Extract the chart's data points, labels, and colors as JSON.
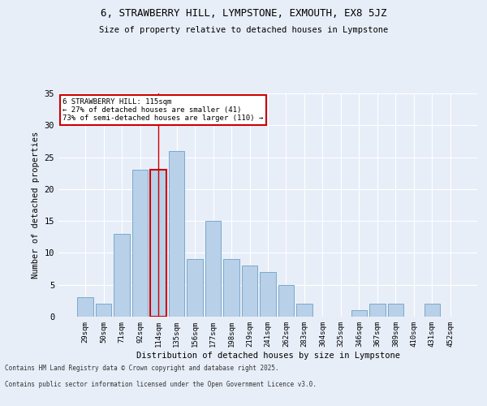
{
  "title_line1": "6, STRAWBERRY HILL, LYMPSTONE, EXMOUTH, EX8 5JZ",
  "title_line2": "Size of property relative to detached houses in Lympstone",
  "xlabel": "Distribution of detached houses by size in Lympstone",
  "ylabel": "Number of detached properties",
  "categories": [
    "29sqm",
    "50sqm",
    "71sqm",
    "92sqm",
    "114sqm",
    "135sqm",
    "156sqm",
    "177sqm",
    "198sqm",
    "219sqm",
    "241sqm",
    "262sqm",
    "283sqm",
    "304sqm",
    "325sqm",
    "346sqm",
    "367sqm",
    "389sqm",
    "410sqm",
    "431sqm",
    "452sqm"
  ],
  "values": [
    3,
    2,
    13,
    23,
    23,
    26,
    9,
    15,
    9,
    8,
    7,
    5,
    2,
    0,
    0,
    1,
    2,
    2,
    0,
    2,
    0
  ],
  "bar_color": "#b8d0e8",
  "bar_edge_color": "#7aaacb",
  "highlight_bar_index": 4,
  "highlight_bar_edge_color": "#cc0000",
  "annotation_text": "6 STRAWBERRY HILL: 115sqm\n← 27% of detached houses are smaller (41)\n73% of semi-detached houses are larger (110) →",
  "annotation_box_edge_color": "#cc0000",
  "annotation_box_face_color": "#ffffff",
  "ylim": [
    0,
    35
  ],
  "yticks": [
    0,
    5,
    10,
    15,
    20,
    25,
    30,
    35
  ],
  "background_color": "#e8eef8",
  "grid_color": "#ffffff",
  "footer_line1": "Contains HM Land Registry data © Crown copyright and database right 2025.",
  "footer_line2": "Contains public sector information licensed under the Open Government Licence v3.0."
}
